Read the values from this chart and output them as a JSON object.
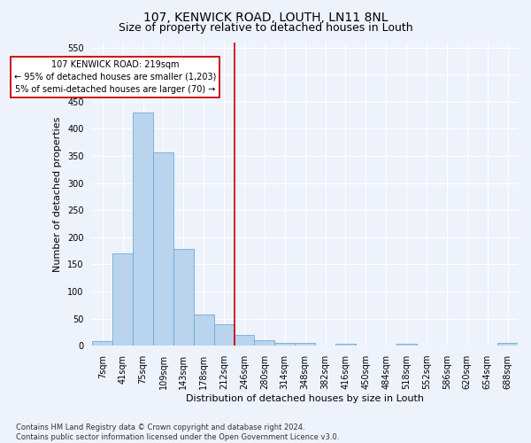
{
  "title": "107, KENWICK ROAD, LOUTH, LN11 8NL",
  "subtitle": "Size of property relative to detached houses in Louth",
  "xlabel": "Distribution of detached houses by size in Louth",
  "ylabel": "Number of detached properties",
  "footer_line1": "Contains HM Land Registry data © Crown copyright and database right 2024.",
  "footer_line2": "Contains public sector information licensed under the Open Government Licence v3.0.",
  "bin_labels": [
    "7sqm",
    "41sqm",
    "75sqm",
    "109sqm",
    "143sqm",
    "178sqm",
    "212sqm",
    "246sqm",
    "280sqm",
    "314sqm",
    "348sqm",
    "382sqm",
    "416sqm",
    "450sqm",
    "484sqm",
    "518sqm",
    "552sqm",
    "586sqm",
    "620sqm",
    "654sqm",
    "688sqm"
  ],
  "bar_values": [
    8,
    170,
    430,
    357,
    178,
    58,
    40,
    20,
    10,
    6,
    5,
    0,
    3,
    0,
    0,
    4,
    0,
    0,
    0,
    0,
    5
  ],
  "bar_color": "#bad4ed",
  "bar_edge_color": "#6aacd6",
  "vline_x": 6.5,
  "vline_color": "#cc0000",
  "annotation_line1": "107 KENWICK ROAD: 219sqm",
  "annotation_line2": "← 95% of detached houses are smaller (1,203)",
  "annotation_line3": "5% of semi-detached houses are larger (70) →",
  "ylim": [
    0,
    560
  ],
  "yticks": [
    0,
    50,
    100,
    150,
    200,
    250,
    300,
    350,
    400,
    450,
    500,
    550
  ],
  "bg_color": "#eef2fb",
  "grid_color": "#ffffff",
  "title_fontsize": 10,
  "subtitle_fontsize": 9,
  "axis_label_fontsize": 8,
  "tick_fontsize": 7,
  "footer_fontsize": 6
}
